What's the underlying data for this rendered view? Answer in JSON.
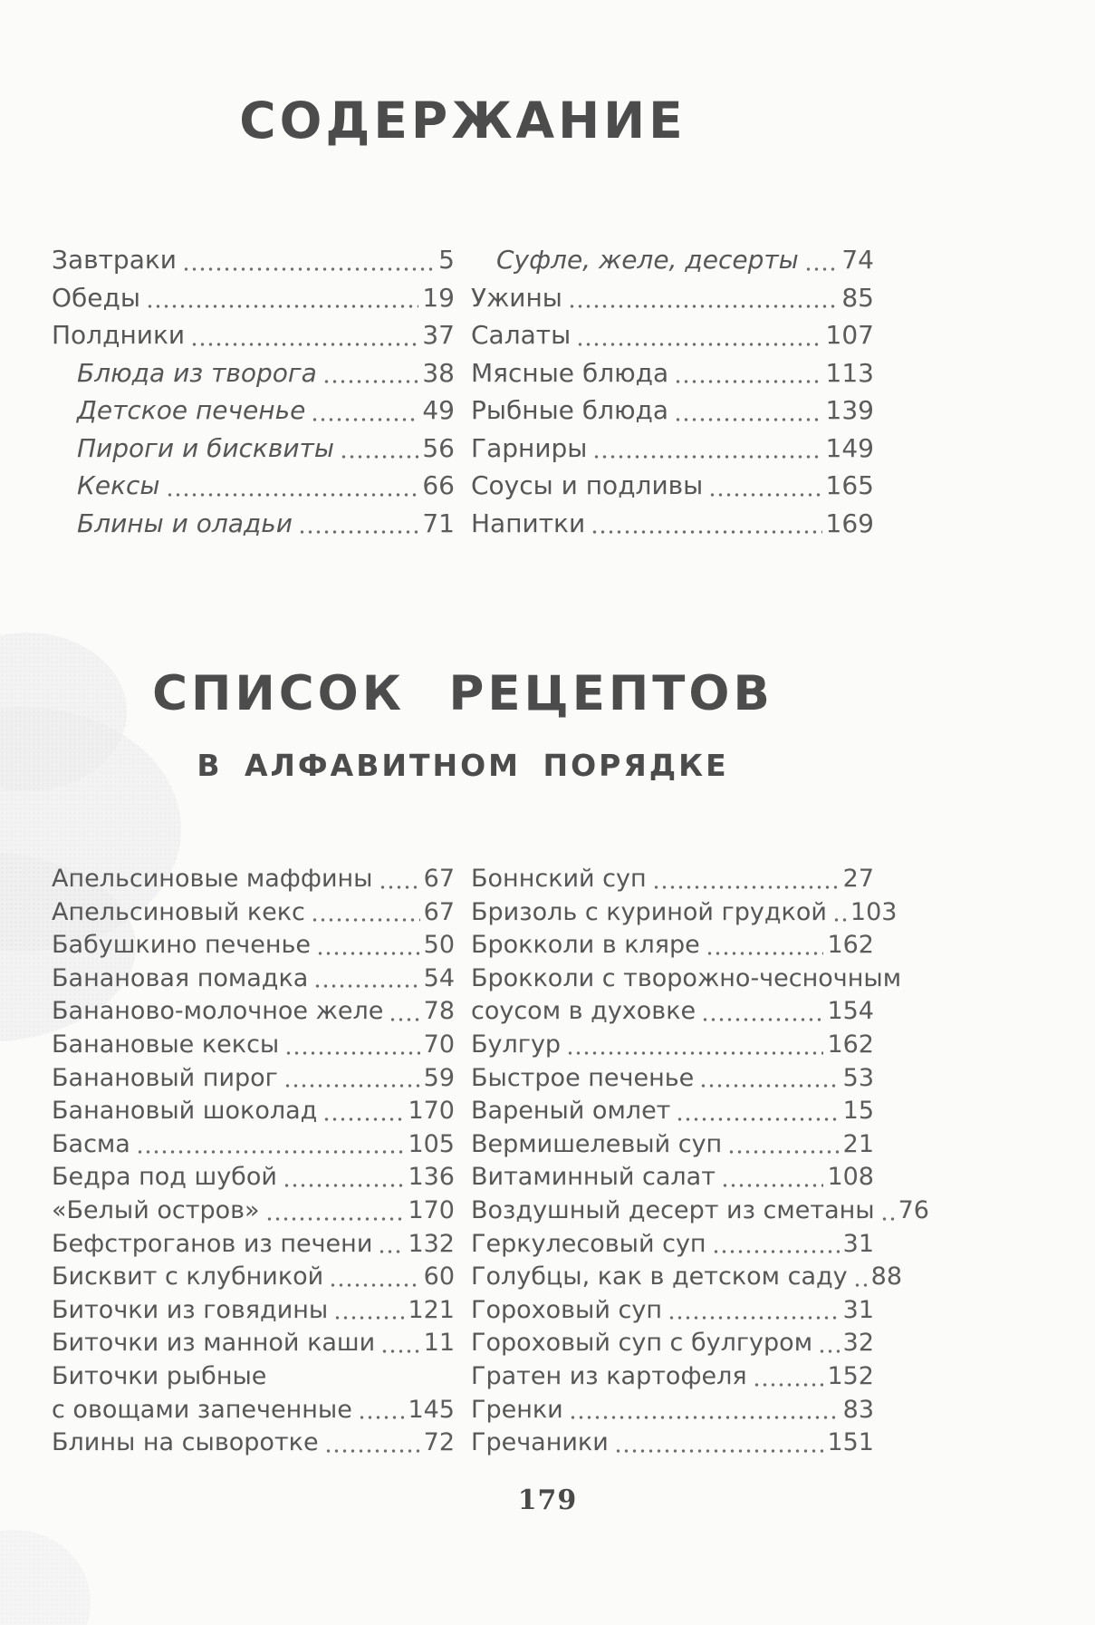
{
  "page": {
    "toc_title": "СОДЕРЖАНИЕ",
    "recipes_title": "СПИСОК РЕЦЕПТОВ",
    "recipes_subtitle": "В АЛФАВИТНОМ ПОРЯДКЕ",
    "footer_page_number": "179"
  },
  "toc": {
    "left": [
      {
        "label": "Завтраки",
        "page": "5"
      },
      {
        "label": "Обеды",
        "page": "19"
      },
      {
        "label": "Полдники",
        "page": "37"
      },
      {
        "label": "Блюда из творога",
        "page": "38"
      },
      {
        "label": "Детское печенье",
        "page": "49"
      },
      {
        "label": "Пироги и бисквиты",
        "page": "56"
      },
      {
        "label": "Кексы",
        "page": "66"
      },
      {
        "label": "Блины и оладьи",
        "page": "71"
      }
    ],
    "right": [
      {
        "label": "Суфле, желе, десерты",
        "page": "74"
      },
      {
        "label": "Ужины",
        "page": "85"
      },
      {
        "label": "Салаты",
        "page": "107"
      },
      {
        "label": "Мясные блюда",
        "page": "113"
      },
      {
        "label": "Рыбные блюда",
        "page": "139"
      },
      {
        "label": "Гарниры",
        "page": "149"
      },
      {
        "label": "Соусы и подливы",
        "page": "165"
      },
      {
        "label": "Напитки",
        "page": "169"
      }
    ]
  },
  "recipes": {
    "left": [
      {
        "label": "Апельсиновые маффины",
        "page": "67"
      },
      {
        "label": "Апельсиновый кекс",
        "page": "67"
      },
      {
        "label": "Бабушкино печенье",
        "page": "50"
      },
      {
        "label": "Банановая помадка",
        "page": "54"
      },
      {
        "label": "Бананово-молочное желе",
        "page": "78"
      },
      {
        "label": "Банановые кексы",
        "page": "70"
      },
      {
        "label": "Банановый пирог",
        "page": "59"
      },
      {
        "label": "Банановый шоколад",
        "page": "170"
      },
      {
        "label": "Басма",
        "page": "105"
      },
      {
        "label": "Бедра под шубой",
        "page": "136"
      },
      {
        "label": "«Белый остров»",
        "page": "170"
      },
      {
        "label": "Бефстроганов из печени",
        "page": "132"
      },
      {
        "label": "Бисквит с клубникой",
        "page": "60"
      },
      {
        "label": "Биточки из говядины",
        "page": "121"
      },
      {
        "label": "Биточки из манной каши",
        "page": "11"
      },
      {
        "label": "Биточки рыбные",
        "label2": "с овощами запеченные",
        "page": "145"
      },
      {
        "label": "Блины на сыворотке",
        "page": "72"
      }
    ],
    "right": [
      {
        "label": "Боннский суп",
        "page": "27"
      },
      {
        "label": "Бризоль с куриной грудкой",
        "page": "103"
      },
      {
        "label": "Брокколи в кляре",
        "page": "162"
      },
      {
        "label": "Брокколи с творожно-чесночным",
        "label2": "соусом в духовке",
        "page": "154"
      },
      {
        "label": "Булгур",
        "page": "162"
      },
      {
        "label": "Быстрое печенье",
        "page": "53"
      },
      {
        "label": "Вареный омлет",
        "page": "15"
      },
      {
        "label": "Вермишелевый суп",
        "page": "21"
      },
      {
        "label": "Витаминный салат",
        "page": "108"
      },
      {
        "label": "Воздушный десерт из сметаны",
        "page": "76"
      },
      {
        "label": "Геркулесовый суп",
        "page": "31"
      },
      {
        "label": "Голубцы, как в детском саду",
        "page": "88"
      },
      {
        "label": "Гороховый суп",
        "page": "31"
      },
      {
        "label": "Гороховый суп с булгуром",
        "page": "32"
      },
      {
        "label": "Гратен из картофеля",
        "page": "152"
      },
      {
        "label": "Гренки",
        "page": "83"
      },
      {
        "label": "Гречаники",
        "page": "151"
      }
    ]
  }
}
